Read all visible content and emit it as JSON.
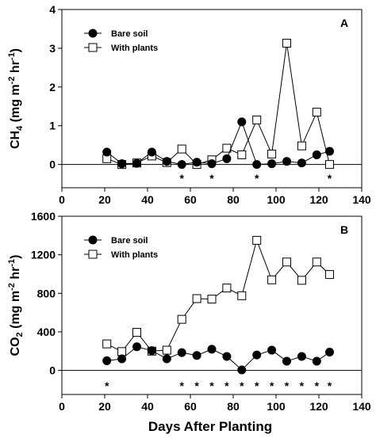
{
  "figure": {
    "xlabel": "Days After Planting"
  },
  "chart_data": [
    {
      "type": "line",
      "panel": "A",
      "ylabel": {
        "prefix": "CH",
        "sub": "4",
        "middle": " (mg m",
        "sup": "-2",
        "suffix": " hr",
        "sup2": "-1",
        "end": ")"
      },
      "xlim": [
        0,
        140
      ],
      "ylim": [
        -0.6,
        4
      ],
      "x_ticks": [
        0,
        20,
        40,
        60,
        80,
        100,
        120,
        140
      ],
      "y_ticks": [
        0,
        1,
        2,
        3,
        4
      ],
      "legend_position": "top-left",
      "zero_line": true,
      "series": [
        {
          "name": "Bare soil",
          "marker": "filled-circle",
          "x": [
            21,
            28,
            35,
            42,
            49,
            56,
            63,
            70,
            77,
            84,
            91,
            98,
            105,
            112,
            119,
            125
          ],
          "y": [
            0.32,
            0.02,
            0.03,
            0.32,
            0.08,
            0.0,
            0.06,
            0.02,
            0.15,
            1.1,
            0.0,
            0.02,
            0.08,
            0.04,
            0.25,
            0.34
          ]
        },
        {
          "name": "With plants",
          "marker": "open-square",
          "x": [
            21,
            28,
            35,
            42,
            49,
            56,
            63,
            70,
            77,
            84,
            91,
            98,
            105,
            112,
            119,
            125
          ],
          "y": [
            0.15,
            0.0,
            0.04,
            0.22,
            0.05,
            0.4,
            0.0,
            0.12,
            0.42,
            0.25,
            1.15,
            0.27,
            3.13,
            0.48,
            1.35,
            0.0
          ]
        }
      ],
      "significance_marks": {
        "symbol": "*",
        "x": [
          56,
          70,
          91,
          125
        ]
      }
    },
    {
      "type": "line",
      "panel": "B",
      "ylabel": {
        "prefix": "CO",
        "sub": "2",
        "middle": " (mg m",
        "sup": "-2",
        "suffix": " hr",
        "sup2": "-1",
        "end": ")"
      },
      "xlim": [
        0,
        140
      ],
      "ylim": [
        -250,
        1600
      ],
      "x_ticks": [
        0,
        20,
        40,
        60,
        80,
        100,
        120,
        140
      ],
      "y_ticks": [
        0,
        400,
        800,
        1200,
        1600
      ],
      "legend_position": "top-left",
      "zero_line": true,
      "series": [
        {
          "name": "Bare soil",
          "marker": "filled-circle",
          "x": [
            21,
            28,
            35,
            42,
            49,
            56,
            63,
            70,
            77,
            84,
            91,
            98,
            105,
            112,
            119,
            125
          ],
          "y": [
            100,
            120,
            245,
            205,
            120,
            185,
            155,
            220,
            145,
            5,
            160,
            210,
            95,
            145,
            95,
            190
          ]
        },
        {
          "name": "With plants",
          "marker": "open-square",
          "x": [
            21,
            28,
            35,
            42,
            49,
            56,
            63,
            70,
            77,
            84,
            91,
            98,
            105,
            112,
            119,
            125
          ],
          "y": [
            275,
            195,
            395,
            200,
            210,
            530,
            745,
            740,
            855,
            775,
            1350,
            940,
            1125,
            935,
            1125,
            995
          ]
        }
      ],
      "significance_marks": {
        "symbol": "*",
        "x": [
          21,
          56,
          63,
          70,
          77,
          84,
          91,
          98,
          105,
          112,
          119,
          125
        ]
      }
    }
  ]
}
